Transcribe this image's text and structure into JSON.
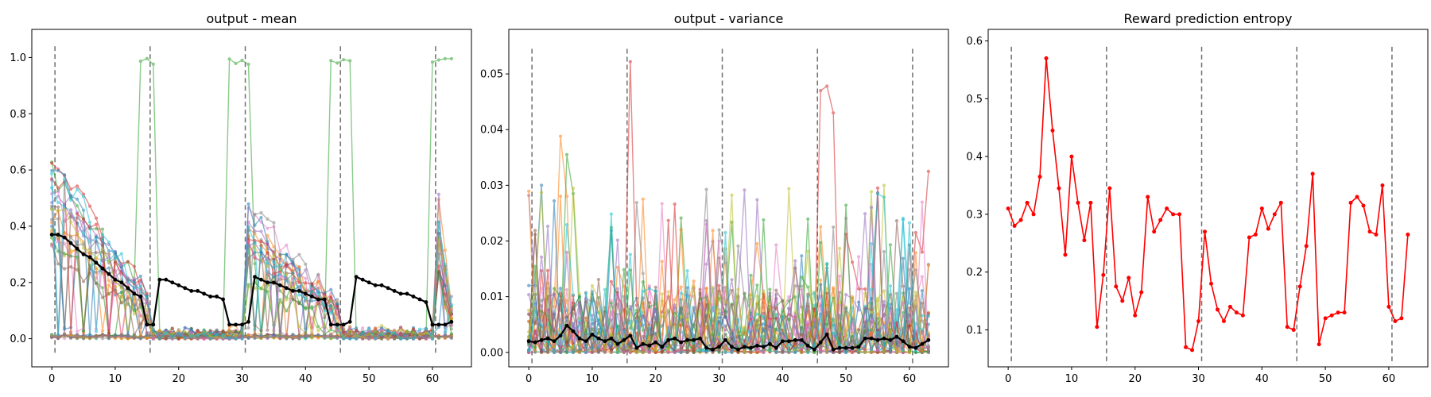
{
  "chart_data": [
    {
      "type": "line",
      "title": "output - mean",
      "xlabel": "",
      "ylabel": "",
      "xlim": [
        -3.15,
        66.15
      ],
      "ylim": [
        -0.1,
        1.1
      ],
      "xticks": [
        0,
        10,
        20,
        30,
        40,
        50,
        60
      ],
      "yticks": [
        0.0,
        0.2,
        0.4,
        0.6,
        0.8,
        1.0
      ],
      "ytick_labels": [
        "0.0",
        "0.2",
        "0.4",
        "0.6",
        "0.8",
        "1.0"
      ],
      "vlines": [
        0.5,
        15.5,
        30.5,
        45.5,
        60.5
      ],
      "vline_range": [
        -0.05,
        1.04
      ],
      "colors": [
        "#1f77b4",
        "#ff7f0e",
        "#2ca02c",
        "#d62728",
        "#9467bd",
        "#8c564b",
        "#e377c2",
        "#7f7f7f",
        "#bcbd22",
        "#17becf"
      ],
      "aggregate_color": "#000000",
      "aggregate": [
        0.37,
        0.37,
        0.36,
        0.34,
        0.32,
        0.3,
        0.29,
        0.27,
        0.25,
        0.23,
        0.21,
        0.2,
        0.18,
        0.16,
        0.15,
        0.05,
        0.05,
        0.21,
        0.21,
        0.2,
        0.19,
        0.18,
        0.17,
        0.17,
        0.16,
        0.15,
        0.15,
        0.14,
        0.05,
        0.05,
        0.05,
        0.06,
        0.22,
        0.21,
        0.2,
        0.2,
        0.19,
        0.18,
        0.17,
        0.17,
        0.16,
        0.15,
        0.14,
        0.14,
        0.05,
        0.05,
        0.05,
        0.06,
        0.22,
        0.21,
        0.2,
        0.19,
        0.19,
        0.18,
        0.17,
        0.16,
        0.16,
        0.15,
        0.14,
        0.13,
        0.05,
        0.05,
        0.05,
        0.06
      ]
    },
    {
      "type": "line",
      "title": "output - variance",
      "xlabel": "",
      "ylabel": "",
      "xlim": [
        -3.15,
        66.15
      ],
      "ylim": [
        -0.0026,
        0.058
      ],
      "xticks": [
        0,
        10,
        20,
        30,
        40,
        50,
        60
      ],
      "yticks": [
        0.0,
        0.01,
        0.02,
        0.03,
        0.04,
        0.05
      ],
      "ytick_labels": [
        "0.00",
        "0.01",
        "0.02",
        "0.03",
        "0.04",
        "0.05"
      ],
      "vlines": [
        0.5,
        15.5,
        30.5,
        45.5,
        60.5
      ],
      "vline_range": [
        -0.002,
        0.0545
      ],
      "colors": [
        "#1f77b4",
        "#ff7f0e",
        "#2ca02c",
        "#d62728",
        "#9467bd",
        "#8c564b",
        "#e377c2",
        "#7f7f7f",
        "#bcbd22",
        "#17becf"
      ],
      "aggregate_color": "#000000",
      "aggregate": [
        0.002,
        0.0018,
        0.0022,
        0.0025,
        0.002,
        0.003,
        0.0048,
        0.0038,
        0.0025,
        0.002,
        0.0032,
        0.0025,
        0.002,
        0.0025,
        0.0015,
        0.0022,
        0.003,
        0.0008,
        0.0015,
        0.0012,
        0.0018,
        0.001,
        0.0022,
        0.0025,
        0.0018,
        0.0022,
        0.0022,
        0.0025,
        0.0008,
        0.0005,
        0.001,
        0.0022,
        0.001,
        0.0005,
        0.001,
        0.0008,
        0.0012,
        0.001,
        0.0015,
        0.0008,
        0.002,
        0.002,
        0.0022,
        0.0022,
        0.0012,
        0.0005,
        0.0018,
        0.0032,
        0.0005,
        0.0008,
        0.0008,
        0.0008,
        0.001,
        0.0025,
        0.0025,
        0.0022,
        0.0025,
        0.0022,
        0.0028,
        0.002,
        0.001,
        0.0008,
        0.0015,
        0.0022
      ]
    },
    {
      "type": "line",
      "title": "Reward prediction entropy",
      "xlabel": "",
      "ylabel": "",
      "xlim": [
        -3.15,
        66.15
      ],
      "ylim": [
        0.036,
        0.62
      ],
      "xticks": [
        0,
        10,
        20,
        30,
        40,
        50,
        60
      ],
      "yticks": [
        0.1,
        0.2,
        0.3,
        0.4,
        0.5,
        0.6
      ],
      "ytick_labels": [
        "0.1",
        "0.2",
        "0.3",
        "0.4",
        "0.5",
        "0.6"
      ],
      "vlines": [
        0.5,
        15.5,
        30.5,
        45.5,
        60.5
      ],
      "vline_range": [
        0.04,
        0.59
      ],
      "series": [
        {
          "color": "#ff0000",
          "values": [
            0.31,
            0.28,
            0.29,
            0.32,
            0.3,
            0.365,
            0.57,
            0.445,
            0.345,
            0.23,
            0.4,
            0.32,
            0.255,
            0.32,
            0.105,
            0.195,
            0.345,
            0.175,
            0.15,
            0.19,
            0.125,
            0.165,
            0.33,
            0.27,
            0.29,
            0.31,
            0.3,
            0.3,
            0.07,
            0.065,
            0.115,
            0.27,
            0.18,
            0.135,
            0.115,
            0.14,
            0.13,
            0.125,
            0.26,
            0.265,
            0.31,
            0.275,
            0.3,
            0.32,
            0.105,
            0.1,
            0.175,
            0.245,
            0.37,
            0.075,
            0.12,
            0.125,
            0.13,
            0.13,
            0.32,
            0.33,
            0.315,
            0.27,
            0.265,
            0.35,
            0.14,
            0.115,
            0.12,
            0.265
          ]
        }
      ]
    }
  ]
}
